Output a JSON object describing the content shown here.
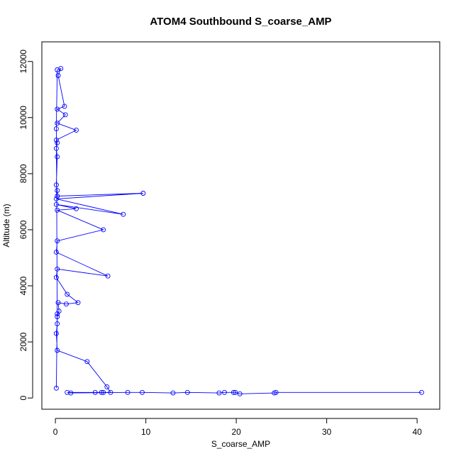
{
  "chart_data": {
    "type": "line",
    "title": "ATOM4 Southbound S_coarse_AMP",
    "xlabel": "S_coarse_AMP",
    "ylabel": "Altitude (m)",
    "xlim": [
      -1.5,
      42.5
    ],
    "ylim": [
      -400,
      12700
    ],
    "xticks": [
      0,
      10,
      20,
      30,
      40
    ],
    "yticks": [
      0,
      2000,
      4000,
      6000,
      8000,
      10000,
      12000
    ],
    "series_color": "#0000ff",
    "markers": "open-circle",
    "series": [
      {
        "values": [
          [
            0.1,
            350
          ],
          [
            0.2,
            3000
          ],
          [
            0.1,
            9600
          ],
          [
            0.2,
            11700
          ],
          [
            0.6,
            11750
          ],
          [
            0.3,
            11500
          ],
          [
            1.0,
            10400
          ],
          [
            0.2,
            10300
          ],
          [
            1.1,
            10100
          ],
          [
            0.2,
            9800
          ],
          [
            2.3,
            9550
          ],
          [
            0.1,
            9200
          ],
          [
            0.2,
            9100
          ],
          [
            0.1,
            8900
          ],
          [
            0.2,
            8600
          ],
          [
            0.1,
            7600
          ],
          [
            0.2,
            7400
          ],
          [
            0.2,
            7200
          ],
          [
            9.7,
            7300
          ],
          [
            0.1,
            7100
          ],
          [
            7.5,
            6550
          ],
          [
            0.1,
            6900
          ],
          [
            2.3,
            6750
          ],
          [
            0.2,
            6700
          ],
          [
            5.3,
            6000
          ],
          [
            0.2,
            5600
          ],
          [
            0.1,
            5200
          ],
          [
            5.8,
            4350
          ],
          [
            0.2,
            4600
          ],
          [
            0.1,
            4300
          ],
          [
            1.3,
            3700
          ],
          [
            2.5,
            3400
          ],
          [
            1.2,
            3350
          ],
          [
            0.3,
            3400
          ],
          [
            0.4,
            3100
          ],
          [
            0.2,
            2900
          ],
          [
            0.2,
            2650
          ],
          [
            0.1,
            2300
          ],
          [
            0.2,
            1700
          ],
          [
            3.5,
            1300
          ],
          [
            5.7,
            400
          ],
          [
            6.1,
            200
          ],
          [
            5.1,
            200
          ],
          [
            5.3,
            200
          ],
          [
            4.4,
            200
          ],
          [
            1.3,
            200
          ],
          [
            1.7,
            180
          ],
          [
            8.0,
            200
          ],
          [
            9.6,
            200
          ],
          [
            13.0,
            180
          ],
          [
            14.6,
            200
          ],
          [
            18.1,
            180
          ],
          [
            18.7,
            200
          ],
          [
            19.7,
            200
          ],
          [
            19.9,
            200
          ],
          [
            20.4,
            150
          ],
          [
            24.2,
            180
          ],
          [
            24.4,
            200
          ],
          [
            40.5,
            200
          ]
        ]
      }
    ],
    "grid": false,
    "legend": "none"
  }
}
